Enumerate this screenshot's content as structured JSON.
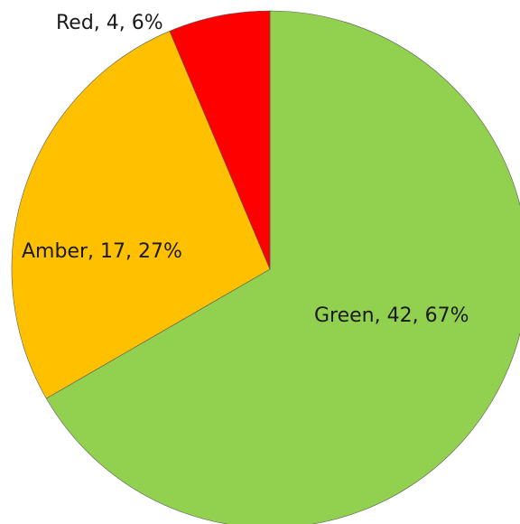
{
  "chart_data": {
    "type": "pie",
    "slices": [
      {
        "name": "Green",
        "value": 42,
        "percent": 67,
        "color": "#92d050",
        "label": "Green, 42, 67%"
      },
      {
        "name": "Amber",
        "value": 17,
        "percent": 27,
        "color": "#ffc000",
        "label": "Amber, 17, 27%"
      },
      {
        "name": "Red",
        "value": 4,
        "percent": 6,
        "color": "#ff0000",
        "label": "Red, 4, 6%"
      }
    ],
    "start": "12 o'clock",
    "direction": "clockwise",
    "title": "",
    "legend": "none"
  }
}
